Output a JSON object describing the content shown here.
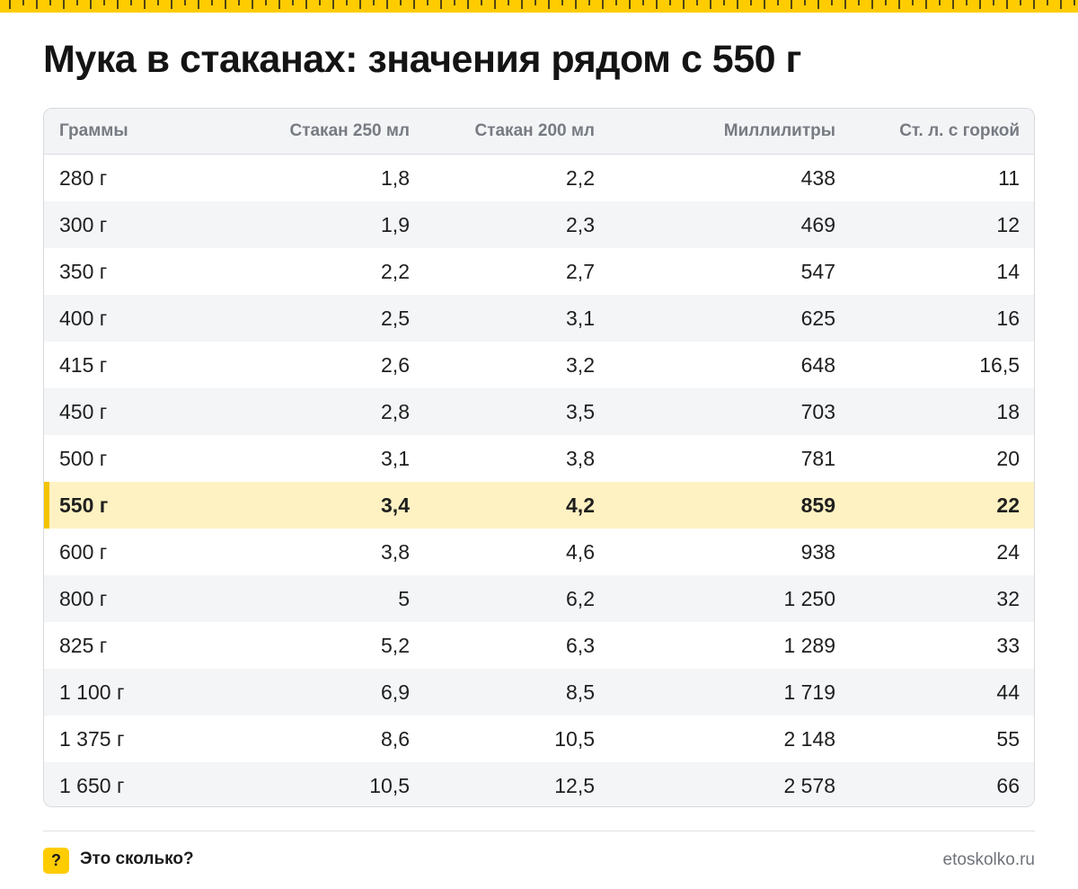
{
  "title": "Мука в стаканах: значения рядом с 550 г",
  "colors": {
    "accent": "#ffcc00",
    "highlight_row": "#fff2c2",
    "header_bg": "#f3f4f6"
  },
  "chart_data": {
    "type": "table",
    "columns": [
      "Граммы",
      "Стакан 250 мл",
      "Стакан 200 мл",
      "Миллилитры",
      "Ст. л. с горкой"
    ],
    "highlighted_row": "550 г",
    "rows": [
      [
        "280 г",
        "1,8",
        "2,2",
        "438",
        "11"
      ],
      [
        "300 г",
        "1,9",
        "2,3",
        "469",
        "12"
      ],
      [
        "350 г",
        "2,2",
        "2,7",
        "547",
        "14"
      ],
      [
        "400 г",
        "2,5",
        "3,1",
        "625",
        "16"
      ],
      [
        "415 г",
        "2,6",
        "3,2",
        "648",
        "16,5"
      ],
      [
        "450 г",
        "2,8",
        "3,5",
        "703",
        "18"
      ],
      [
        "500 г",
        "3,1",
        "3,8",
        "781",
        "20"
      ],
      [
        "550 г",
        "3,4",
        "4,2",
        "859",
        "22"
      ],
      [
        "600 г",
        "3,8",
        "4,6",
        "938",
        "24"
      ],
      [
        "800 г",
        "5",
        "6,2",
        "1 250",
        "32"
      ],
      [
        "825 г",
        "5,2",
        "6,3",
        "1 289",
        "33"
      ],
      [
        "1 100 г",
        "6,9",
        "8,5",
        "1 719",
        "44"
      ],
      [
        "1 375 г",
        "8,6",
        "10,5",
        "2 148",
        "55"
      ],
      [
        "1 650 г",
        "10,5",
        "12,5",
        "2 578",
        "66"
      ]
    ]
  },
  "footer": {
    "badge_icon": "question-icon",
    "badge_symbol": "?",
    "brand": "Это сколько?",
    "site": "etoskolko.ru"
  }
}
